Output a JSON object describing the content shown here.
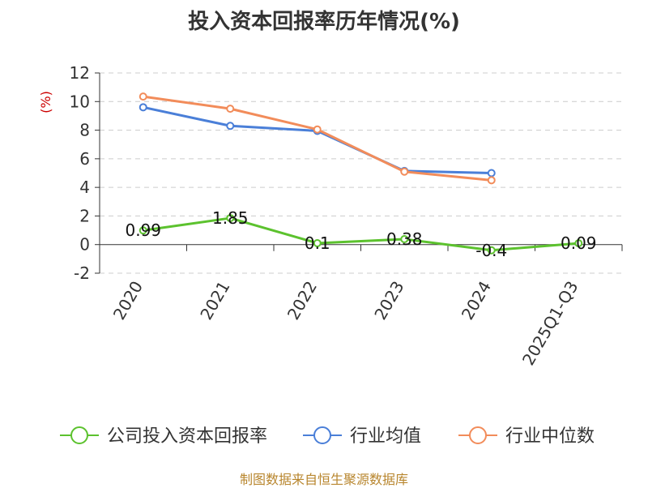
{
  "chart_data": {
    "type": "line",
    "title": "投入资本回报率历年情况(%)",
    "ylabel": "(%)",
    "categories": [
      "2020",
      "2021",
      "2022",
      "2023",
      "2024",
      "2025Q1-Q3"
    ],
    "ylim": [
      -2,
      12
    ],
    "yticks": [
      -2,
      0,
      2,
      4,
      6,
      8,
      10,
      12
    ],
    "grid": true,
    "legend_position": "bottom",
    "series": [
      {
        "name": "公司投入资本回报率",
        "color": "#5cc22e",
        "values": [
          0.99,
          1.85,
          0.1,
          0.38,
          -0.4,
          0.09
        ],
        "labels": [
          "0.99",
          "1.85",
          "0.1",
          "0.38",
          "-0.4",
          "0.09"
        ]
      },
      {
        "name": "行业均值",
        "color": "#4a7fd8",
        "values": [
          9.6,
          8.3,
          7.95,
          5.15,
          5.0,
          null
        ]
      },
      {
        "name": "行业中位数",
        "color": "#f28c5a",
        "values": [
          10.35,
          9.5,
          8.05,
          5.1,
          4.5,
          null
        ]
      }
    ]
  },
  "source": "制图数据来自恒生聚源数据库"
}
